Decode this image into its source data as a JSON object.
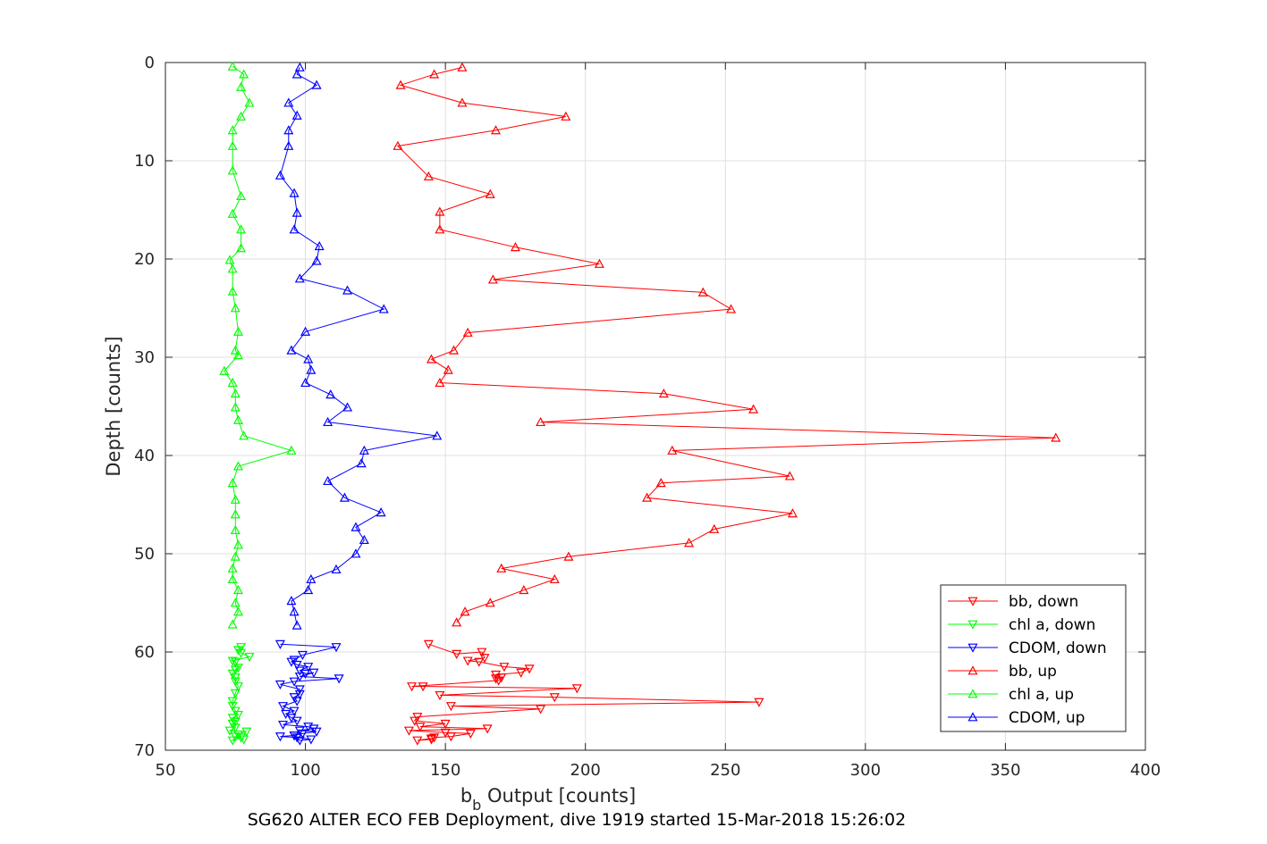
{
  "chart_data": {
    "type": "line",
    "caption": "SG620 ALTER ECO FEB Deployment, dive 1919 started 15-Mar-2018 15:26:02",
    "xlabel_main": "b",
    "xlabel_sub": "b",
    "xlabel_rest": " Output [counts]",
    "ylabel": "Depth [counts]",
    "xlim": [
      50,
      400
    ],
    "ylim": [
      0,
      70
    ],
    "y_reversed": true,
    "grid": true,
    "xticks": [
      "50",
      "100",
      "150",
      "200",
      "250",
      "300",
      "350",
      "400"
    ],
    "yticks": [
      "0",
      "10",
      "20",
      "30",
      "40",
      "50",
      "60",
      "70"
    ],
    "legend_position": "bottom-right",
    "series": [
      {
        "name": "bb, down",
        "color": "#ff0000",
        "marker": "triangle-down",
        "points": [
          [
            144,
            59.2
          ],
          [
            154,
            60.2
          ],
          [
            163,
            60.0
          ],
          [
            164,
            60.6
          ],
          [
            158,
            60.9
          ],
          [
            162,
            61.0
          ],
          [
            171,
            61.5
          ],
          [
            180,
            61.7
          ],
          [
            177,
            62.1
          ],
          [
            168,
            62.3
          ],
          [
            168,
            62.7
          ],
          [
            170,
            62.6
          ],
          [
            169,
            62.9
          ],
          [
            138,
            63.5
          ],
          [
            142,
            63.5
          ],
          [
            197,
            63.7
          ],
          [
            148,
            64.4
          ],
          [
            189,
            64.6
          ],
          [
            262,
            65.1
          ],
          [
            152,
            65.5
          ],
          [
            184,
            65.8
          ],
          [
            140,
            66.6
          ],
          [
            139,
            67.0
          ],
          [
            150,
            67.3
          ],
          [
            141,
            67.6
          ],
          [
            165,
            67.8
          ],
          [
            137,
            68.0
          ],
          [
            150,
            68.2
          ],
          [
            159,
            68.3
          ],
          [
            152,
            68.6
          ],
          [
            146,
            68.7
          ],
          [
            145,
            68.9
          ],
          [
            140,
            69.0
          ],
          [
            145,
            68.8
          ]
        ]
      },
      {
        "name": "chl a, down",
        "color": "#00ff00",
        "marker": "triangle-down",
        "points": [
          [
            77,
            59.5
          ],
          [
            76,
            59.8
          ],
          [
            77,
            60.1
          ],
          [
            80,
            60.5
          ],
          [
            74,
            60.9
          ],
          [
            75,
            61.0
          ],
          [
            76,
            61.6
          ],
          [
            75,
            61.8
          ],
          [
            74,
            62.2
          ],
          [
            75,
            62.6
          ],
          [
            75,
            63.0
          ],
          [
            76,
            63.5
          ],
          [
            75,
            64.2
          ],
          [
            74,
            65.0
          ],
          [
            74,
            65.5
          ],
          [
            75,
            66.0
          ],
          [
            76,
            66.4
          ],
          [
            74,
            66.7
          ],
          [
            75,
            67.1
          ],
          [
            74,
            67.3
          ],
          [
            75,
            67.7
          ],
          [
            73,
            68.0
          ],
          [
            79,
            68.1
          ],
          [
            76,
            68.4
          ],
          [
            77,
            68.7
          ],
          [
            74,
            69.0
          ],
          [
            75,
            68.6
          ],
          [
            78,
            68.9
          ]
        ]
      },
      {
        "name": "CDOM, down",
        "color": "#0000ff",
        "marker": "triangle-down",
        "points": [
          [
            91,
            59.2
          ],
          [
            111,
            59.5
          ],
          [
            99,
            60.3
          ],
          [
            96,
            60.8
          ],
          [
            95,
            61.0
          ],
          [
            97,
            61.3
          ],
          [
            101,
            61.5
          ],
          [
            98,
            61.9
          ],
          [
            100,
            62.2
          ],
          [
            103,
            62.1
          ],
          [
            98,
            62.5
          ],
          [
            112,
            62.7
          ],
          [
            96,
            63.0
          ],
          [
            91,
            63.3
          ],
          [
            98,
            63.8
          ],
          [
            98,
            64.3
          ],
          [
            96,
            64.6
          ],
          [
            97,
            65.0
          ],
          [
            92,
            65.5
          ],
          [
            96,
            66.0
          ],
          [
            93,
            66.3
          ],
          [
            95,
            66.7
          ],
          [
            97,
            67.0
          ],
          [
            92,
            67.4
          ],
          [
            101,
            67.6
          ],
          [
            103,
            67.8
          ],
          [
            98,
            68.0
          ],
          [
            104,
            68.1
          ],
          [
            99,
            68.3
          ],
          [
            96,
            68.5
          ],
          [
            91,
            68.6
          ],
          [
            97,
            68.7
          ],
          [
            102,
            68.9
          ],
          [
            98,
            69.0
          ],
          [
            96,
            68.5
          ]
        ]
      },
      {
        "name": "bb, up",
        "color": "#ff0000",
        "marker": "triangle-up",
        "points": [
          [
            156,
            0.5
          ],
          [
            146,
            1.2
          ],
          [
            134,
            2.3
          ],
          [
            156,
            4.1
          ],
          [
            193,
            5.5
          ],
          [
            168,
            6.9
          ],
          [
            133,
            8.5
          ],
          [
            144,
            11.6
          ],
          [
            166,
            13.4
          ],
          [
            148,
            15.2
          ],
          [
            148,
            17.0
          ],
          [
            175,
            18.8
          ],
          [
            205,
            20.5
          ],
          [
            167,
            22.1
          ],
          [
            242,
            23.4
          ],
          [
            252,
            25.1
          ],
          [
            158,
            27.5
          ],
          [
            153,
            29.3
          ],
          [
            145,
            30.2
          ],
          [
            151,
            31.3
          ],
          [
            148,
            32.6
          ],
          [
            228,
            33.7
          ],
          [
            260,
            35.3
          ],
          [
            184,
            36.6
          ],
          [
            368,
            38.2
          ],
          [
            231,
            39.5
          ],
          [
            273,
            42.1
          ],
          [
            227,
            42.8
          ],
          [
            222,
            44.3
          ],
          [
            274,
            45.9
          ],
          [
            246,
            47.5
          ],
          [
            237,
            48.9
          ],
          [
            194,
            50.3
          ],
          [
            170,
            51.5
          ],
          [
            189,
            52.6
          ],
          [
            178,
            53.7
          ],
          [
            166,
            55.0
          ],
          [
            157,
            55.9
          ],
          [
            154,
            57.0
          ]
        ]
      },
      {
        "name": "chl a, up",
        "color": "#00ff00",
        "marker": "triangle-up",
        "points": [
          [
            74,
            0.4
          ],
          [
            78,
            1.2
          ],
          [
            77,
            2.5
          ],
          [
            80,
            4.1
          ],
          [
            77,
            5.5
          ],
          [
            74,
            6.9
          ],
          [
            74,
            8.5
          ],
          [
            74,
            11.0
          ],
          [
            77,
            13.6
          ],
          [
            74,
            15.4
          ],
          [
            77,
            17.0
          ],
          [
            77,
            18.9
          ],
          [
            73,
            20.1
          ],
          [
            74,
            21.0
          ],
          [
            74,
            23.3
          ],
          [
            75,
            25.0
          ],
          [
            76,
            27.4
          ],
          [
            75,
            29.3
          ],
          [
            76,
            29.8
          ],
          [
            71,
            31.4
          ],
          [
            74,
            32.6
          ],
          [
            75,
            33.7
          ],
          [
            75,
            35.1
          ],
          [
            76,
            36.4
          ],
          [
            78,
            38.0
          ],
          [
            95,
            39.5
          ],
          [
            76,
            41.1
          ],
          [
            74,
            42.8
          ],
          [
            75,
            44.5
          ],
          [
            75,
            46.0
          ],
          [
            75,
            47.6
          ],
          [
            76,
            49.1
          ],
          [
            75,
            50.3
          ],
          [
            74,
            51.5
          ],
          [
            74,
            52.6
          ],
          [
            76,
            53.7
          ],
          [
            75,
            55.0
          ],
          [
            76,
            55.9
          ],
          [
            74,
            57.2
          ]
        ]
      },
      {
        "name": "CDOM, up",
        "color": "#0000ff",
        "marker": "triangle-up",
        "points": [
          [
            98,
            0.5
          ],
          [
            97,
            1.2
          ],
          [
            104,
            2.3
          ],
          [
            94,
            4.1
          ],
          [
            97,
            5.4
          ],
          [
            94,
            6.9
          ],
          [
            94,
            8.5
          ],
          [
            91,
            11.5
          ],
          [
            96,
            13.3
          ],
          [
            97,
            15.3
          ],
          [
            96,
            17.0
          ],
          [
            105,
            18.7
          ],
          [
            104,
            20.2
          ],
          [
            98,
            22.0
          ],
          [
            115,
            23.2
          ],
          [
            128,
            25.1
          ],
          [
            100,
            27.4
          ],
          [
            95,
            29.3
          ],
          [
            101,
            30.2
          ],
          [
            102,
            31.3
          ],
          [
            100,
            32.6
          ],
          [
            109,
            33.8
          ],
          [
            115,
            35.1
          ],
          [
            108,
            36.6
          ],
          [
            147,
            38.0
          ],
          [
            121,
            39.5
          ],
          [
            120,
            40.8
          ],
          [
            108,
            42.6
          ],
          [
            114,
            44.3
          ],
          [
            127,
            45.8
          ],
          [
            118,
            47.3
          ],
          [
            121,
            48.6
          ],
          [
            118,
            50.0
          ],
          [
            111,
            51.6
          ],
          [
            102,
            52.6
          ],
          [
            101,
            53.7
          ],
          [
            95,
            54.8
          ],
          [
            96,
            55.9
          ],
          [
            97,
            57.3
          ]
        ]
      }
    ]
  }
}
